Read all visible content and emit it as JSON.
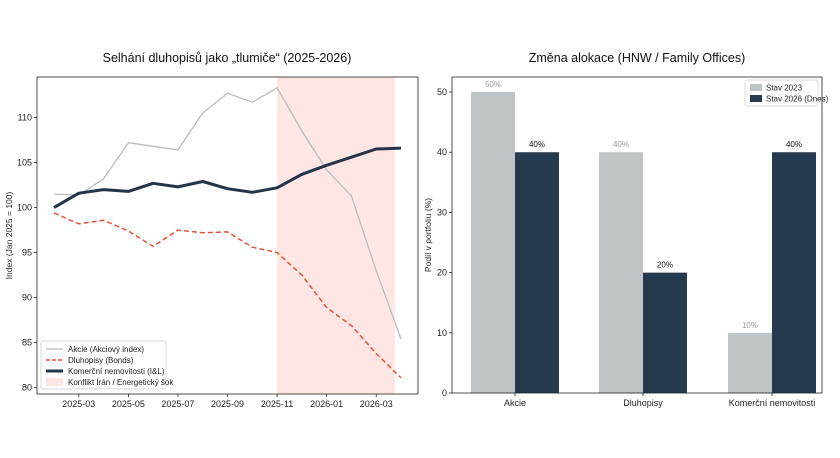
{
  "chart_data": [
    {
      "type": "line",
      "title": "Selhání dluhopisů jako „tlumiče“ (2025-2026)",
      "xlabel": "",
      "ylabel": "Index (Jan 2025 = 100)",
      "x": [
        "2025-02",
        "2025-03",
        "2025-04",
        "2025-05",
        "2025-06",
        "2025-07",
        "2025-08",
        "2025-09",
        "2025-10",
        "2025-11",
        "2025-12",
        "2026-01",
        "2026-02",
        "2026-03",
        "2026-04"
      ],
      "x_tick_labels": [
        "2025-03",
        "2025-05",
        "2025-07",
        "2025-09",
        "2025-11",
        "2026-01",
        "2026-03"
      ],
      "y_ticks": [
        80,
        85,
        90,
        95,
        100,
        105,
        110
      ],
      "ylim": [
        79.3,
        114.5
      ],
      "series": [
        {
          "name": "Akcie (Akciový index)",
          "color": "#b8bcbf",
          "style": "solid-thin",
          "values": [
            101.5,
            101.4,
            103.2,
            107.2,
            106.8,
            106.4,
            110.5,
            112.7,
            111.7,
            113.3,
            108.5,
            104.2,
            101.3,
            93.0,
            85.4
          ]
        },
        {
          "name": "Dluhopisy (Bonds)",
          "color": "#e5533c",
          "style": "dashed",
          "values": [
            99.4,
            98.2,
            98.6,
            97.4,
            95.7,
            97.5,
            97.2,
            97.3,
            95.6,
            95.0,
            92.5,
            88.9,
            86.9,
            83.8,
            81.1
          ]
        },
        {
          "name": "Komerční nemovitosti (I&L)",
          "color": "#24344a",
          "style": "solid-thick",
          "values": [
            100.0,
            101.6,
            102.0,
            101.8,
            102.7,
            102.3,
            102.9,
            102.1,
            101.7,
            102.2,
            103.7,
            104.7,
            105.6,
            106.5,
            106.6
          ]
        }
      ],
      "shaded_region": {
        "label": "Konflikt Írán / Energetický šok",
        "from": "2025-11",
        "to": "2026-03",
        "color": "#fde6e4"
      },
      "legend_position": "bottom-left",
      "grid": false
    },
    {
      "type": "bar",
      "title": "Změna alokace (HNW / Family Offices)",
      "xlabel": "",
      "ylabel": "Podíl v portfoliu (%)",
      "categories": [
        "Akcie",
        "Dluhopisy",
        "Komerční nemovitosti"
      ],
      "y_ticks": [
        0,
        10,
        20,
        30,
        40,
        50
      ],
      "ylim": [
        0,
        52.5
      ],
      "series": [
        {
          "name": "Stav 2023",
          "color": "#bfc4c7",
          "label_color": "#9aa0a4",
          "values": [
            50,
            40,
            10
          ],
          "labels": [
            "50%",
            "40%",
            "10%"
          ]
        },
        {
          "name": "Stav 2026 (Dnes)",
          "color": "#263a4f",
          "label_color": "#111111",
          "values": [
            40,
            20,
            40
          ],
          "labels": [
            "40%",
            "20%",
            "40%"
          ]
        }
      ],
      "legend_position": "top-right",
      "grid": false
    }
  ]
}
